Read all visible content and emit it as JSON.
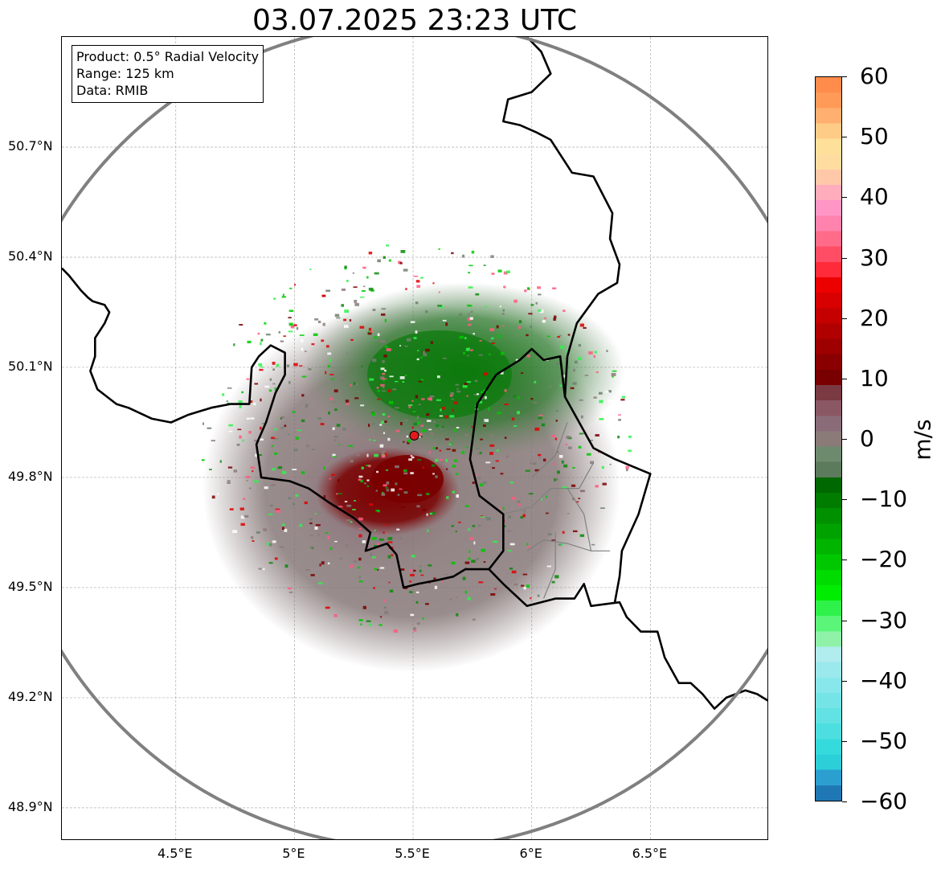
{
  "title": "03.07.2025 23:23 UTC",
  "info_box": {
    "product": "Product: 0.5° Radial Velocity",
    "range": "Range: 125 km",
    "data": "Data: RMIB"
  },
  "axes": {
    "lon_range": [
      4.02,
      7.0
    ],
    "lat_range": [
      48.81,
      51.0
    ],
    "lon_ticks": [
      {
        "value": 4.5,
        "label": "4.5°E"
      },
      {
        "value": 5.0,
        "label": "5°E"
      },
      {
        "value": 5.5,
        "label": "5.5°E"
      },
      {
        "value": 6.0,
        "label": "6°E"
      },
      {
        "value": 6.5,
        "label": "6.5°E"
      }
    ],
    "lat_ticks": [
      {
        "value": 50.7,
        "label": "50.7°N"
      },
      {
        "value": 50.4,
        "label": "50.4°N"
      },
      {
        "value": 50.1,
        "label": "50.1°N"
      },
      {
        "value": 49.8,
        "label": "49.8°N"
      },
      {
        "value": 49.5,
        "label": "49.5°N"
      },
      {
        "value": 49.2,
        "label": "49.2°N"
      },
      {
        "value": 48.9,
        "label": "48.9°N"
      }
    ],
    "grid": true
  },
  "radar": {
    "lon": 5.505,
    "lat": 49.914,
    "range_km": 125,
    "marker_color": "#e31a1c",
    "range_ring_color": "#808080"
  },
  "colorbar": {
    "unit": "m/s",
    "min": -60,
    "max": 60,
    "ticks": [
      {
        "value": 60,
        "label": "60"
      },
      {
        "value": 50,
        "label": "50"
      },
      {
        "value": 40,
        "label": "40"
      },
      {
        "value": 30,
        "label": "30"
      },
      {
        "value": 20,
        "label": "20"
      },
      {
        "value": 10,
        "label": "10"
      },
      {
        "value": 0,
        "label": "0"
      },
      {
        "value": -10,
        "label": "−10"
      },
      {
        "value": -20,
        "label": "−20"
      },
      {
        "value": -30,
        "label": "−30"
      },
      {
        "value": -40,
        "label": "−40"
      },
      {
        "value": -50,
        "label": "−50"
      },
      {
        "value": -60,
        "label": "−60"
      }
    ],
    "colors": [
      "#1f78b4",
      "#2b9fd0",
      "#2ccfd8",
      "#35dbdc",
      "#4ddfe0",
      "#62e2e2",
      "#74e4e6",
      "#88e7ea",
      "#9be9ec",
      "#b1ecef",
      "#8ff2a8",
      "#5bf57a",
      "#2ef24a",
      "#00ec00",
      "#00dc00",
      "#00c800",
      "#00b400",
      "#00a200",
      "#009000",
      "#007c00",
      "#006800",
      "#5c7a5c",
      "#6e8a6e",
      "#8a7a78",
      "#8a6c78",
      "#8a5864",
      "#7a3a42",
      "#780000",
      "#8a0000",
      "#9e0000",
      "#b00000",
      "#c40000",
      "#d80000",
      "#ec0000",
      "#ff2a3a",
      "#ff4d66",
      "#ff6b88",
      "#ff83ad",
      "#ff96c6",
      "#ffacbc",
      "#ffc8a8",
      "#ffdca0",
      "#ffe09a",
      "#ffcc88",
      "#ffb070",
      "#ff9a58",
      "#ff8c4a"
    ]
  },
  "map_lines": {
    "belgium_border": [
      [
        4.02,
        50.37
      ],
      [
        4.05,
        50.35
      ],
      [
        4.1,
        50.31
      ],
      [
        4.13,
        50.29
      ],
      [
        4.15,
        50.28
      ],
      [
        4.2,
        50.27
      ],
      [
        4.22,
        50.25
      ],
      [
        4.2,
        50.22
      ],
      [
        4.16,
        50.18
      ],
      [
        4.16,
        50.13
      ],
      [
        4.14,
        50.09
      ],
      [
        4.17,
        50.04
      ],
      [
        4.21,
        50.02
      ],
      [
        4.25,
        50.0
      ],
      [
        4.3,
        49.99
      ],
      [
        4.4,
        49.96
      ],
      [
        4.48,
        49.95
      ],
      [
        4.55,
        49.97
      ],
      [
        4.65,
        49.99
      ],
      [
        4.73,
        50.0
      ],
      [
        4.81,
        50.0
      ],
      [
        4.82,
        50.1
      ],
      [
        4.85,
        50.13
      ],
      [
        4.9,
        50.16
      ],
      [
        4.96,
        50.14
      ],
      [
        4.96,
        50.08
      ],
      [
        4.92,
        50.03
      ],
      [
        4.88,
        49.95
      ],
      [
        4.84,
        49.89
      ],
      [
        4.86,
        49.8
      ],
      [
        4.98,
        49.79
      ],
      [
        5.06,
        49.77
      ],
      [
        5.15,
        49.73
      ],
      [
        5.25,
        49.69
      ],
      [
        5.32,
        49.65
      ],
      [
        5.3,
        49.6
      ],
      [
        5.39,
        49.62
      ],
      [
        5.43,
        49.59
      ],
      [
        5.46,
        49.5
      ],
      [
        5.52,
        49.51
      ],
      [
        5.6,
        49.52
      ],
      [
        5.67,
        49.53
      ],
      [
        5.72,
        49.55
      ],
      [
        5.82,
        49.55
      ]
    ],
    "luxembourg_border": [
      [
        5.82,
        49.55
      ],
      [
        5.88,
        49.51
      ],
      [
        5.98,
        49.45
      ],
      [
        6.1,
        49.47
      ],
      [
        6.18,
        49.47
      ],
      [
        6.22,
        49.51
      ],
      [
        6.25,
        49.45
      ],
      [
        6.37,
        49.46
      ],
      [
        6.4,
        49.42
      ],
      [
        6.46,
        49.38
      ],
      [
        6.53,
        49.38
      ],
      [
        6.56,
        49.31
      ],
      [
        6.62,
        49.24
      ],
      [
        6.67,
        49.24
      ],
      [
        6.72,
        49.21
      ],
      [
        6.77,
        49.17
      ],
      [
        6.82,
        49.2
      ],
      [
        6.9,
        49.22
      ],
      [
        6.95,
        49.21
      ],
      [
        7.0,
        49.19
      ]
    ],
    "germany_border": [
      [
        5.82,
        49.55
      ],
      [
        5.88,
        49.6
      ],
      [
        5.88,
        49.7
      ],
      [
        5.78,
        49.75
      ],
      [
        5.74,
        49.85
      ],
      [
        5.77,
        50.0
      ],
      [
        5.85,
        50.08
      ],
      [
        5.95,
        50.12
      ],
      [
        6.0,
        50.15
      ],
      [
        6.05,
        50.12
      ],
      [
        6.12,
        50.13
      ],
      [
        6.14,
        50.02
      ],
      [
        6.2,
        49.95
      ],
      [
        6.26,
        49.88
      ],
      [
        6.35,
        49.85
      ],
      [
        6.5,
        49.81
      ],
      [
        6.45,
        49.7
      ],
      [
        6.38,
        49.6
      ],
      [
        6.37,
        49.53
      ],
      [
        6.35,
        49.46
      ]
    ],
    "belgium_german_border": [
      [
        6.14,
        50.02
      ],
      [
        6.15,
        50.13
      ],
      [
        6.19,
        50.22
      ],
      [
        6.28,
        50.3
      ],
      [
        6.36,
        50.33
      ],
      [
        6.37,
        50.38
      ],
      [
        6.33,
        50.45
      ],
      [
        6.34,
        50.52
      ],
      [
        6.26,
        50.62
      ],
      [
        6.17,
        50.63
      ],
      [
        6.08,
        50.72
      ],
      [
        6.02,
        50.74
      ],
      [
        5.95,
        50.76
      ],
      [
        5.88,
        50.77
      ],
      [
        5.9,
        50.83
      ],
      [
        6.0,
        50.85
      ],
      [
        6.08,
        50.9
      ],
      [
        6.04,
        50.96
      ],
      [
        5.98,
        51.0
      ]
    ],
    "luxembourg_cantons": [
      [
        [
          5.88,
          49.7
        ],
        [
          6.0,
          49.72
        ],
        [
          6.08,
          49.77
        ],
        [
          6.2,
          49.77
        ],
        [
          6.26,
          49.84
        ]
      ],
      [
        [
          5.98,
          49.6
        ],
        [
          6.05,
          49.63
        ],
        [
          6.15,
          49.62
        ],
        [
          6.25,
          49.6
        ],
        [
          6.33,
          49.6
        ]
      ],
      [
        [
          6.05,
          49.47
        ],
        [
          6.1,
          49.55
        ],
        [
          6.1,
          49.65
        ]
      ],
      [
        [
          6.15,
          49.77
        ],
        [
          6.22,
          49.7
        ],
        [
          6.25,
          49.6
        ]
      ],
      [
        [
          6.0,
          49.8
        ],
        [
          6.1,
          49.86
        ],
        [
          6.15,
          49.95
        ]
      ]
    ]
  }
}
